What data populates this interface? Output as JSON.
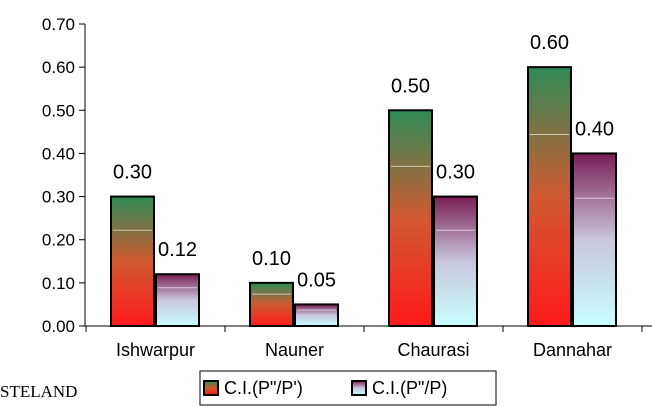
{
  "chart_data": {
    "type": "bar",
    "title": "",
    "xlabel": "",
    "ylabel": "",
    "categories": [
      "Ishwarpur",
      "Nauner",
      "Chaurasi",
      "Dannahar"
    ],
    "series": [
      {
        "name": "C.I.(P\"/P')",
        "values": [
          0.3,
          0.1,
          0.5,
          0.6
        ],
        "labels": [
          "0.30",
          "0.10",
          "0.50",
          "0.60"
        ],
        "gradient": {
          "top": "#2e8b57",
          "middle": "#d05a30",
          "bottom": "#ff1a1a"
        }
      },
      {
        "name": "C.I.(P\"/P)",
        "values": [
          0.12,
          0.05,
          0.3,
          0.4
        ],
        "labels": [
          "0.12",
          "0.05",
          "0.30",
          "0.40"
        ],
        "gradient": {
          "top": "#7a1f55",
          "middle": "#c9c6dc",
          "bottom": "#c8ffff"
        }
      }
    ],
    "ylim": [
      0,
      0.7
    ],
    "yticks": [
      0.0,
      0.1,
      0.2,
      0.3,
      0.4,
      0.5,
      0.6,
      0.7
    ],
    "ytick_labels": [
      "0.00",
      "0.10",
      "0.20",
      "0.30",
      "0.40",
      "0.50",
      "0.60",
      "0.70"
    ],
    "grid": false,
    "legend_position": "bottom-center"
  },
  "fragment_text": "STELAND"
}
